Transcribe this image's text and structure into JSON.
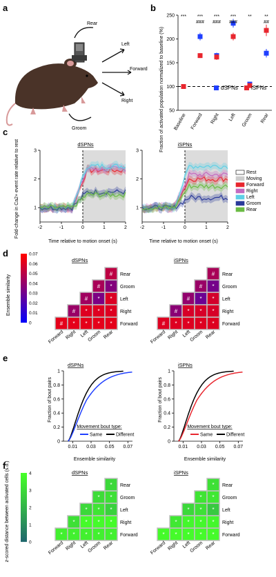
{
  "panel_letters": [
    "a",
    "b",
    "c",
    "d",
    "e",
    "f"
  ],
  "panel_a": {
    "moves": [
      "Rear",
      "Left",
      "Forward",
      "Right",
      "Groom"
    ]
  },
  "chart_data": [
    {
      "panel": "b",
      "type": "scatter",
      "ylabel": "Fraction of activated population normalized to baseline (%)",
      "categories": [
        "Baseline",
        "Forward",
        "Right",
        "Left",
        "Groom",
        "Rear"
      ],
      "ylim": [
        50,
        250
      ],
      "yticks": [
        "50",
        "100",
        "150",
        "200",
        "250"
      ],
      "reference_line": 100,
      "legend": "bottom-right",
      "series": [
        {
          "name": "dSPNs",
          "color": "#1f3fff",
          "values": [
            100,
            205,
            165,
            233,
            105,
            170
          ],
          "err": [
            3,
            8,
            6,
            9,
            4,
            9
          ]
        },
        {
          "name": "iSPNs",
          "color": "#e8262e",
          "values": [
            100,
            165,
            162,
            205,
            102,
            218
          ],
          "err": [
            3,
            5,
            6,
            8,
            4,
            12
          ]
        }
      ],
      "stars_top": [
        "***",
        "***",
        "***",
        "***",
        "**",
        "**"
      ],
      "hash_bottom": [
        "###",
        "###",
        "###",
        "",
        "##"
      ]
    },
    {
      "panel": "c",
      "type": "line",
      "titles": [
        "dSPNs",
        "iSPNs"
      ],
      "ylabel": "Fold-change in Ca2+ event rate relative to rest",
      "xlabel": "Time relative to motion onset (s)",
      "xticks": [
        "-2",
        "-1",
        "0",
        "1",
        "2"
      ],
      "yticks": [
        "1",
        "2",
        "3"
      ],
      "legend": [
        {
          "name": "Rest",
          "color": "#ffffff"
        },
        {
          "name": "Moving",
          "color": "#cccccc"
        },
        {
          "name": "Forward",
          "color": "#e8262e"
        },
        {
          "name": "Right",
          "color": "#c46bc0"
        },
        {
          "name": "Left",
          "color": "#5fd0e6"
        },
        {
          "name": "Groom",
          "color": "#2b3a9a"
        },
        {
          "name": "Rear",
          "color": "#6bbb44"
        }
      ],
      "dSPN_means": {
        "Forward": 2.3,
        "Right": 2.35,
        "Left": 2.45,
        "Groom": 1.55,
        "Rear": 1.45
      },
      "iSPN_means": {
        "Forward": 2.0,
        "Right": 2.15,
        "Left": 2.45,
        "Groom": 1.35,
        "Rear": 1.75
      }
    },
    {
      "panel": "d",
      "type": "heatmap",
      "titles": [
        "dSPNs",
        "iSPNs"
      ],
      "colorbar_label": "Ensemble similarity",
      "colorbar_ticks": [
        "0",
        "0.01",
        "0.02",
        "0.03",
        "0.04",
        "0.05",
        "0.06",
        "0.07"
      ],
      "rows": [
        "Rear",
        "Groom",
        "Left",
        "Right",
        "Forward"
      ],
      "cols": [
        "Forward",
        "Right",
        "Left",
        "Groom",
        "Rear"
      ],
      "dSPNs": [
        [
          0.052,
          0.038,
          0.032,
          0.024,
          0.062
        ],
        [
          0.046,
          0.036,
          0.028,
          0.058
        ],
        [
          0.044,
          0.034,
          0.06
        ],
        [
          0.042,
          0.061
        ],
        [
          0.063
        ]
      ],
      "iSPNs": [
        [
          0.046,
          0.034,
          0.03,
          0.022,
          0.06
        ],
        [
          0.042,
          0.032,
          0.024,
          0.056
        ],
        [
          0.04,
          0.03,
          0.058
        ],
        [
          0.038,
          0.059
        ],
        [
          0.061
        ]
      ],
      "diag_mark": "#",
      "off_mark": "*"
    },
    {
      "panel": "e",
      "type": "line",
      "titles": [
        "dSPNs",
        "iSPNs"
      ],
      "ylabel": "Fraction of bout pairs",
      "xlabel": "Ensemble similarity",
      "xticks": [
        "0.01",
        "0.03",
        "0.05",
        "0.07"
      ],
      "yticks": [
        "0",
        "0.2",
        "0.4",
        "0.6",
        "0.8",
        "1"
      ],
      "legend_title": "Movement bout type:",
      "legend": [
        {
          "name": "Same"
        },
        {
          "name": "Different"
        }
      ]
    },
    {
      "panel": "f",
      "type": "heatmap",
      "titles": [
        "dSPNs",
        "iSPNs"
      ],
      "colorbar_label": "z-scored distance between activated cells (s.d.)",
      "colorbar_ticks": [
        "0",
        "1",
        "2",
        "3",
        "4"
      ],
      "rows": [
        "Rear",
        "Groom",
        "Left",
        "Right",
        "Forward"
      ],
      "cols": [
        "Forward",
        "Right",
        "Left",
        "Groom",
        "Rear"
      ],
      "dSPNs": [
        [
          3.0,
          3.3,
          3.4,
          3.6,
          2.0
        ],
        [
          3.1,
          3.2,
          3.5,
          3.8
        ],
        [
          3.0,
          3.3,
          2.8
        ],
        [
          3.2,
          3.9
        ],
        [
          3.6
        ]
      ],
      "iSPNs": [
        [
          3.2,
          3.1,
          3.0,
          3.5,
          2.4
        ],
        [
          3.3,
          3.4,
          3.6,
          3.5
        ],
        [
          3.0,
          3.2,
          2.6
        ],
        [
          3.4,
          3.8
        ],
        [
          3.9
        ]
      ],
      "mark": "*"
    }
  ]
}
